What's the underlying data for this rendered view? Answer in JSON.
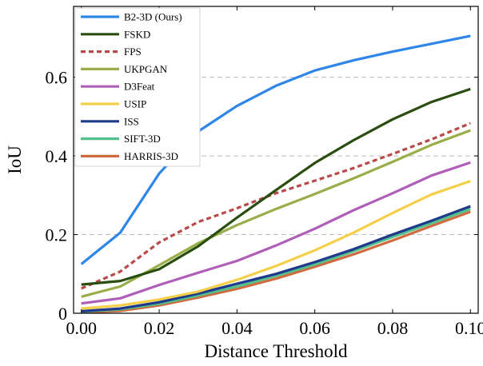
{
  "chart_data": {
    "type": "line",
    "xlabel": "Distance Threshold",
    "ylabel": "IoU",
    "xlim": [
      -0.002,
      0.102
    ],
    "ylim": [
      0,
      0.78
    ],
    "xticks": [
      "0.00",
      "0.02",
      "0.04",
      "0.06",
      "0.08",
      "0.10"
    ],
    "yticks": [
      "0",
      "0.2",
      "0.4",
      "0.6"
    ],
    "grid": "horizontal dashed at 0.2, 0.4, 0.6",
    "legend_position": "top-left",
    "x": [
      0.0,
      0.01,
      0.02,
      0.03,
      0.04,
      0.05,
      0.06,
      0.07,
      0.08,
      0.09,
      0.1
    ],
    "series": [
      {
        "name": "B2-3D (Ours)",
        "color": "#2e86e8",
        "dash": "solid",
        "values": [
          0.125,
          0.205,
          0.355,
          0.462,
          0.527,
          0.578,
          0.617,
          0.643,
          0.665,
          0.685,
          0.705
        ]
      },
      {
        "name": "FSKD",
        "color": "#2a4d10",
        "dash": "solid",
        "values": [
          0.073,
          0.082,
          0.112,
          0.17,
          0.243,
          0.313,
          0.382,
          0.44,
          0.493,
          0.537,
          0.57
        ]
      },
      {
        "name": "FPS",
        "color": "#b84a4a",
        "dash": "dashed",
        "values": [
          0.063,
          0.106,
          0.18,
          0.232,
          0.267,
          0.305,
          0.337,
          0.369,
          0.405,
          0.442,
          0.483
        ]
      },
      {
        "name": "UKPGAN",
        "color": "#99ad48",
        "dash": "solid",
        "values": [
          0.042,
          0.068,
          0.122,
          0.178,
          0.224,
          0.265,
          0.303,
          0.343,
          0.385,
          0.428,
          0.465
        ]
      },
      {
        "name": "D3Feat",
        "color": "#b05fb8",
        "dash": "solid",
        "values": [
          0.025,
          0.038,
          0.072,
          0.103,
          0.133,
          0.172,
          0.215,
          0.262,
          0.305,
          0.35,
          0.383
        ]
      },
      {
        "name": "USIP",
        "color": "#f4cf4a",
        "dash": "solid",
        "values": [
          0.012,
          0.02,
          0.035,
          0.055,
          0.085,
          0.12,
          0.16,
          0.205,
          0.255,
          0.302,
          0.336
        ]
      },
      {
        "name": "ISS",
        "color": "#1f3a8c",
        "dash": "solid",
        "values": [
          0.005,
          0.012,
          0.028,
          0.05,
          0.075,
          0.1,
          0.13,
          0.163,
          0.2,
          0.235,
          0.272
        ]
      },
      {
        "name": "SIFT-3D",
        "color": "#52c08a",
        "dash": "solid",
        "values": [
          0.004,
          0.01,
          0.024,
          0.045,
          0.068,
          0.095,
          0.124,
          0.158,
          0.194,
          0.229,
          0.265
        ]
      },
      {
        "name": "HARRIS-3D",
        "color": "#cf6b3f",
        "dash": "solid",
        "values": [
          0.002,
          0.006,
          0.02,
          0.04,
          0.062,
          0.088,
          0.118,
          0.15,
          0.185,
          0.222,
          0.258
        ]
      }
    ]
  }
}
